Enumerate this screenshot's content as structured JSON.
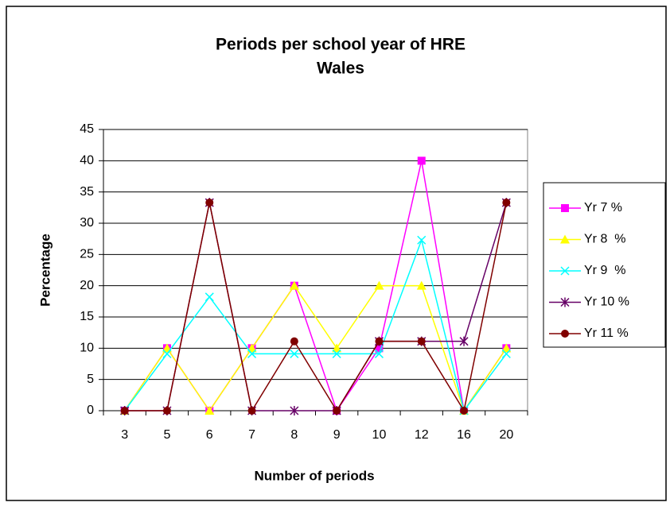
{
  "chart_data": {
    "type": "line",
    "title": [
      "Periods per school year of HRE",
      "Wales"
    ],
    "x_label": "Number of periods",
    "y_label": "Percentage",
    "categories": [
      "3",
      "5",
      "6",
      "7",
      "8",
      "9",
      "10",
      "12",
      "16",
      "20"
    ],
    "ylim": [
      0,
      45
    ],
    "yticks": [
      0,
      5,
      10,
      15,
      20,
      25,
      30,
      35,
      40,
      45
    ],
    "grid": true,
    "legend": "right",
    "series": [
      {
        "name": "Yr 7 %",
        "color": "#ff00ff",
        "marker": "square",
        "values": [
          0,
          10,
          0,
          10,
          20,
          0,
          10,
          40,
          0,
          10
        ]
      },
      {
        "name": "Yr 8  %",
        "color": "#ffff00",
        "marker": "triangle",
        "values": [
          0,
          10,
          0,
          10,
          20,
          10,
          20,
          20,
          0,
          10
        ]
      },
      {
        "name": "Yr 9  %",
        "color": "#00ffff",
        "marker": "x",
        "values": [
          0,
          9.1,
          18.2,
          9.1,
          9.1,
          9.1,
          9.1,
          27.3,
          0,
          9.1
        ]
      },
      {
        "name": "Yr 10 %",
        "color": "#660066",
        "marker": "star",
        "values": [
          0,
          0,
          33.3,
          0,
          0,
          0,
          11.1,
          11.1,
          11.1,
          33.3
        ]
      },
      {
        "name": "Yr 11 %",
        "color": "#800000",
        "marker": "circle",
        "values": [
          0,
          0,
          33.3,
          0,
          11.1,
          0,
          11.1,
          11.1,
          0,
          33.3
        ]
      }
    ]
  }
}
